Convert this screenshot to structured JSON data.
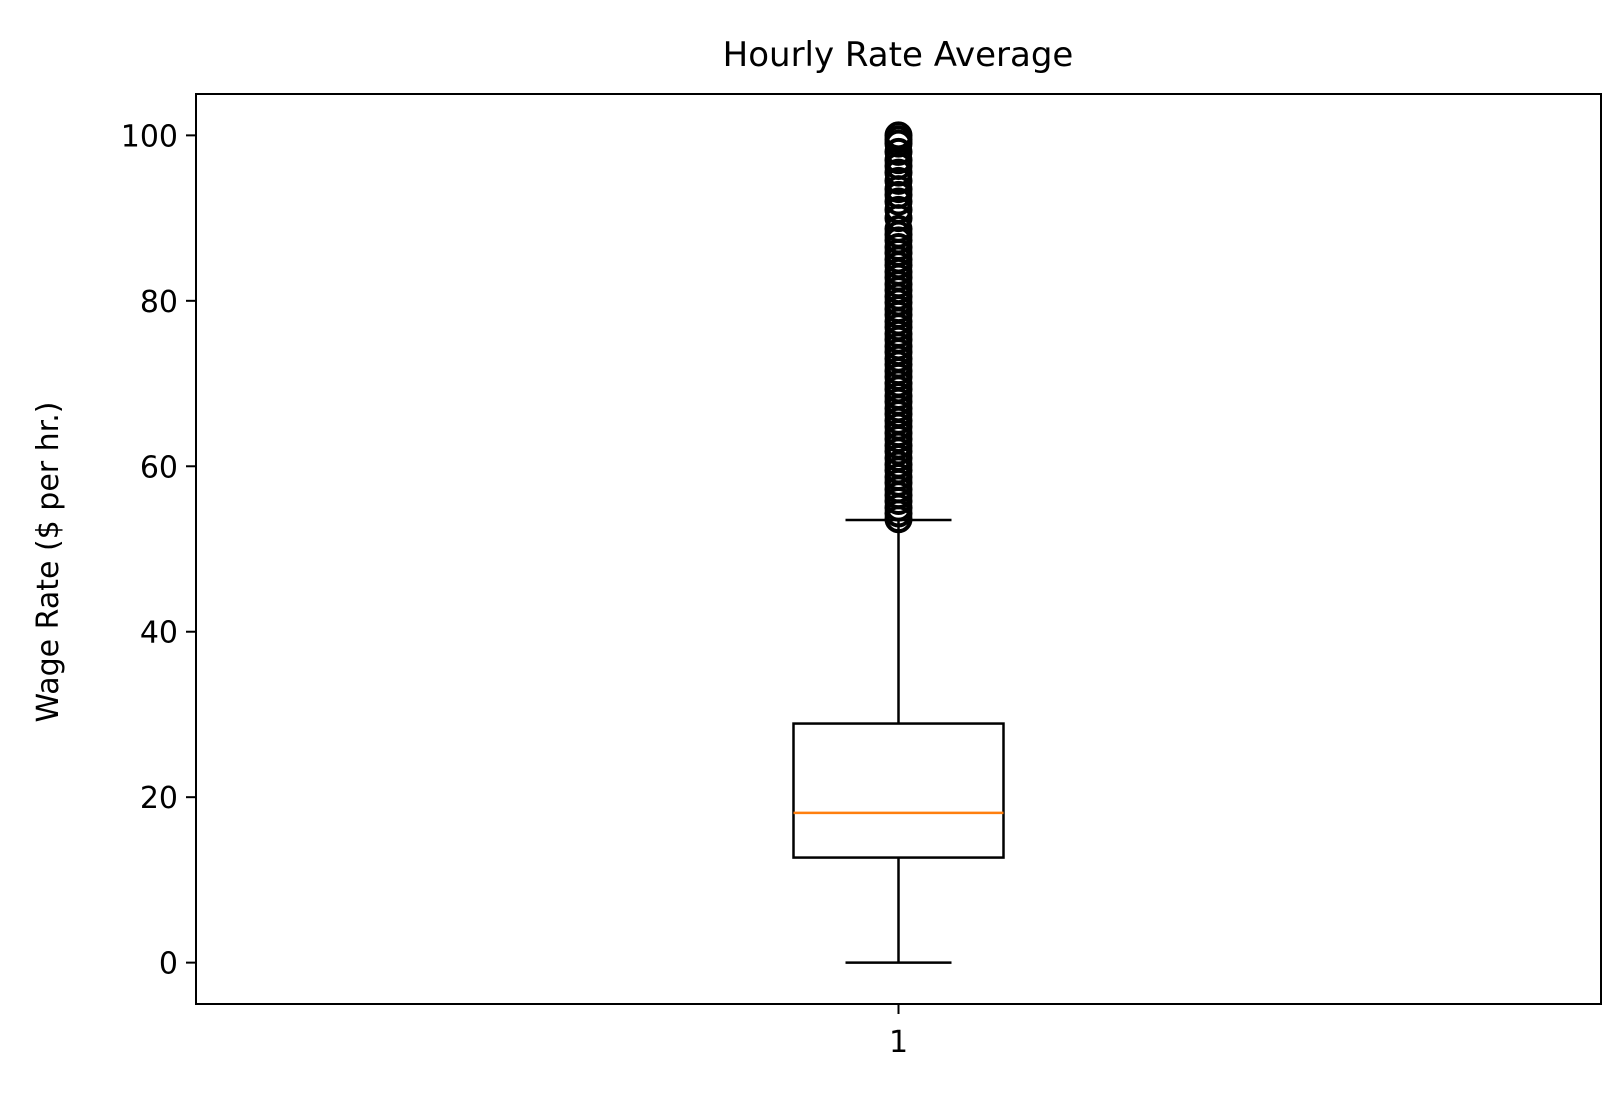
{
  "chart_data": {
    "type": "box",
    "title": "Hourly Rate Average",
    "xlabel": "",
    "ylabel": "Wage Rate ($ per hr.)",
    "ylim": [
      -5,
      105
    ],
    "yticks": [
      0,
      20,
      40,
      60,
      80,
      100
    ],
    "ytick_labels": [
      "0",
      "20",
      "40",
      "60",
      "80",
      "100"
    ],
    "categories": [
      "1"
    ],
    "boxes": [
      {
        "category": "1",
        "whisker_low": 0,
        "q1": 12.7,
        "median": 18.1,
        "q3": 28.9,
        "whisker_high": 53.5,
        "outliers": [
          53.6,
          54.3,
          55.0,
          55.8,
          56.5,
          57.2,
          58.0,
          58.7,
          59.5,
          60.2,
          61.0,
          61.8,
          62.5,
          63.3,
          64.0,
          64.8,
          65.5,
          66.3,
          67.0,
          67.8,
          68.5,
          69.3,
          70.0,
          70.8,
          71.5,
          72.3,
          73.0,
          73.8,
          74.5,
          75.3,
          76.0,
          76.8,
          77.5,
          78.3,
          79.0,
          79.8,
          80.5,
          81.3,
          82.0,
          82.8,
          83.5,
          84.3,
          85.0,
          85.8,
          86.5,
          87.3,
          88.0,
          88.7,
          90.0,
          91.0,
          92.0,
          92.8,
          93.5,
          94.5,
          95.5,
          96.3,
          97.0,
          98.0,
          99.0,
          99.5,
          100.0
        ]
      }
    ],
    "colors": {
      "box": "#000000",
      "median": "#ff7f0e",
      "outlier_edge": "#000000"
    },
    "grid": false,
    "legend": "none"
  }
}
